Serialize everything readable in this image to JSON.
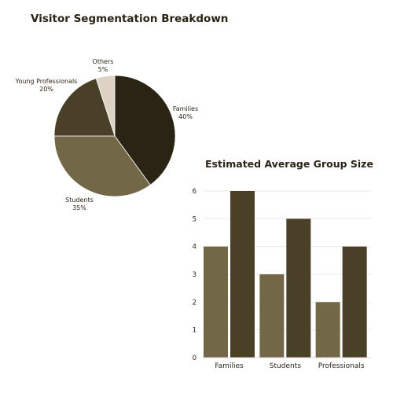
{
  "chart_data": [
    {
      "type": "pie",
      "title": "Visitor Segmentation Breakdown",
      "slices": [
        {
          "label": "Families",
          "value": 40,
          "pct_label": "40%",
          "color": "#2a2414"
        },
        {
          "label": "Students",
          "value": 35,
          "pct_label": "35%",
          "color": "#726746"
        },
        {
          "label": "Young Professionals",
          "value": 20,
          "pct_label": "20%",
          "color": "#4a3f27"
        },
        {
          "label": "Others",
          "value": 5,
          "pct_label": "5%",
          "color": "#ddd2c3"
        }
      ]
    },
    {
      "type": "bar",
      "title": "Estimated Average Group Size",
      "categories": [
        "Families",
        "Students",
        "Professionals"
      ],
      "series": [
        {
          "values": [
            4,
            3,
            2
          ],
          "color": "#726746"
        },
        {
          "values": [
            6,
            5,
            4
          ],
          "color": "#4a3f27"
        }
      ],
      "ylim": [
        0,
        6
      ],
      "yticks": [
        0,
        1,
        2,
        3,
        4,
        5,
        6
      ],
      "grid": true
    }
  ]
}
